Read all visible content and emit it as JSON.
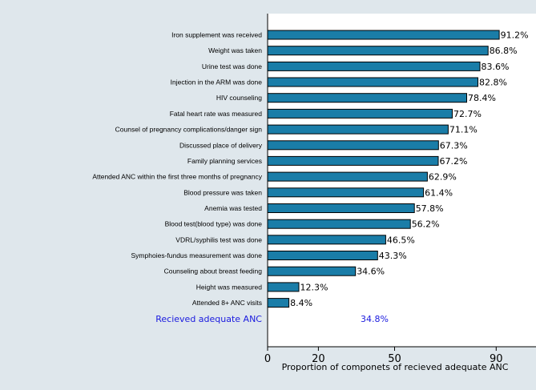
{
  "chart_data": {
    "type": "bar",
    "orientation": "horizontal",
    "title": "",
    "xlabel": "Proportion of componets of recieved adequate ANC",
    "ylabel": "",
    "xlim": [
      0,
      95
    ],
    "xticks": [
      0,
      20,
      50,
      90
    ],
    "grid": false,
    "bar_color": "#1a7da8",
    "categories": [
      "Iron supplement was received",
      "Weight was taken",
      "Urine test was done",
      "Injection in the ARM was done",
      "HIV counseling",
      "Fatal heart rate was measured",
      "Counsel of pregnancy complications/danger sign",
      "Discussed place of delivery",
      "Family planning services",
      "Attended ANC within the first three months of pregnancy",
      "Blood pressure was taken",
      "Anemia was tested",
      "Blood test(blood type) was done",
      "VDRL/syphilis test was done",
      "Symphoies-fundus measurement was done",
      "Counseling about breast feeding",
      "Height was measured",
      "Attended 8+ ANC visits"
    ],
    "values": [
      91.2,
      86.8,
      83.6,
      82.8,
      78.4,
      72.7,
      71.1,
      67.3,
      67.2,
      62.9,
      61.4,
      57.8,
      56.2,
      46.5,
      43.3,
      34.6,
      12.3,
      8.4
    ],
    "value_labels": [
      "91.2%",
      "86.8%",
      "83.6%",
      "82.8%",
      "78.4%",
      "72.7%",
      "71.1%",
      "67.3%",
      "67.2%",
      "62.9%",
      "61.4%",
      "57.8%",
      "56.2%",
      "46.5%",
      "43.3%",
      "34.6%",
      "12.3%",
      "8.4%"
    ],
    "summary": {
      "label": "Recieved adequate ANC",
      "value": "34.8%",
      "color": "#1a1adf"
    }
  }
}
